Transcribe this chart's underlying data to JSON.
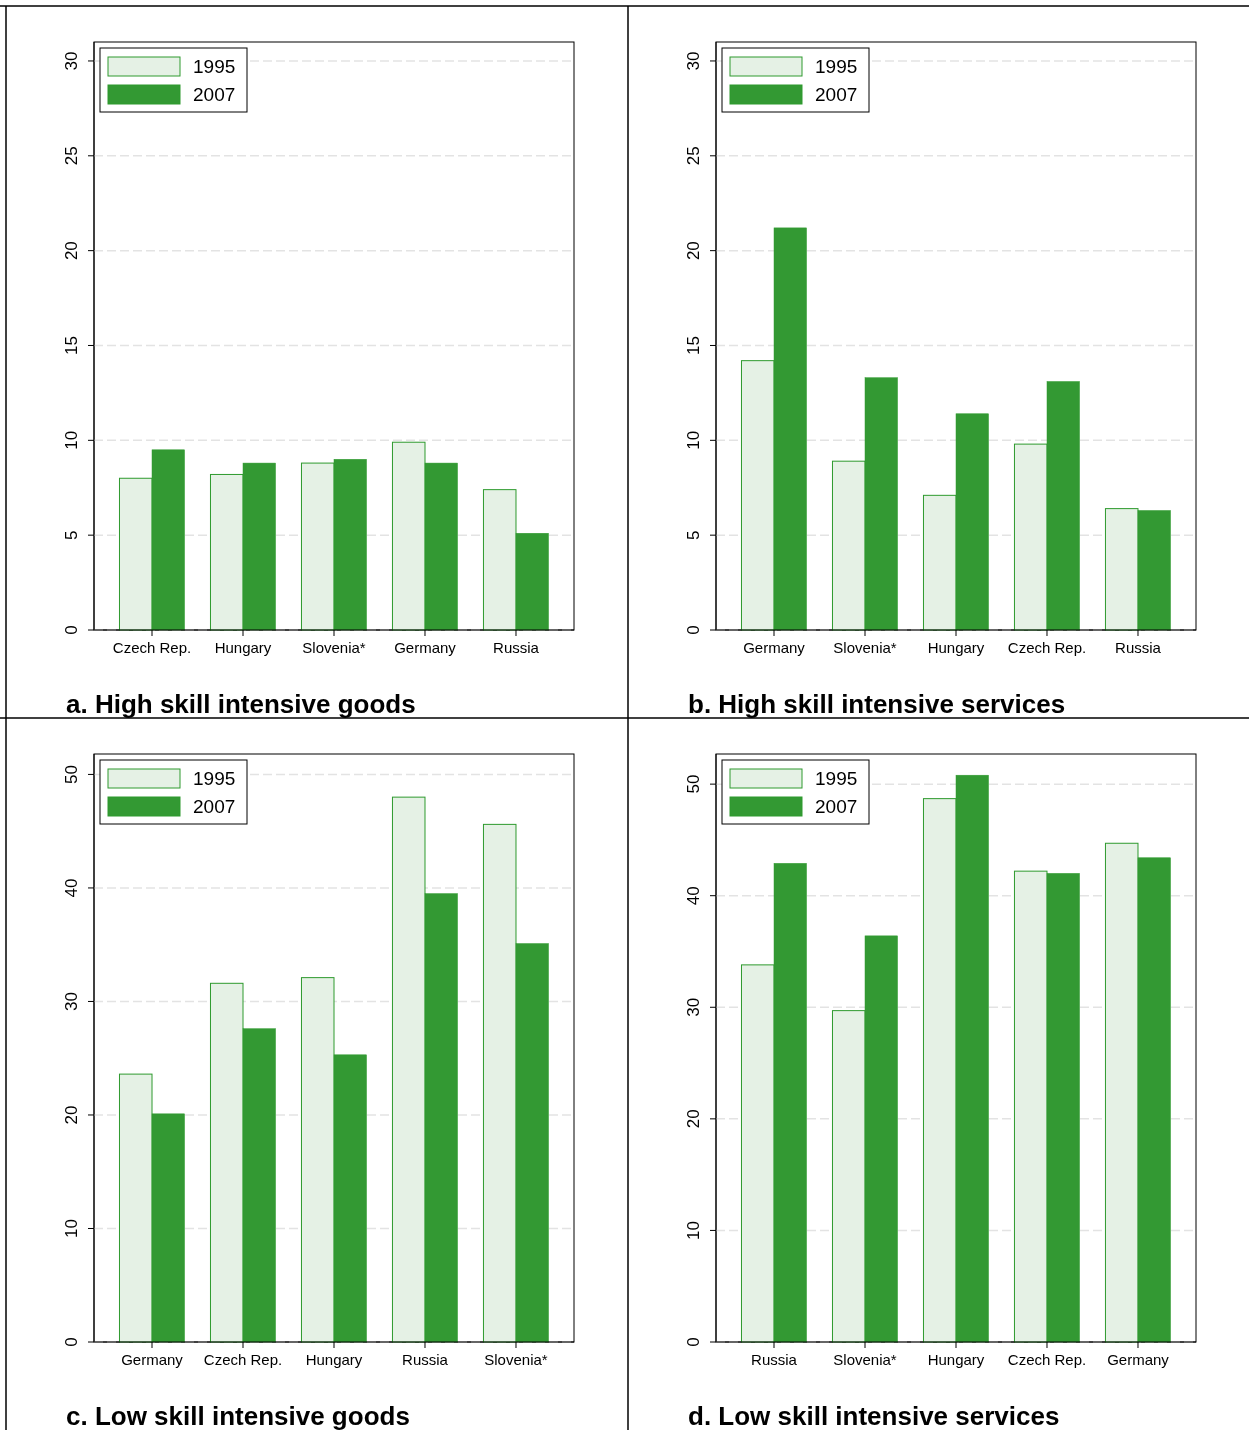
{
  "chart_data": [
    {
      "type": "bar",
      "title": "a. High skill intensive goods",
      "categories": [
        "Czech Rep.",
        "Hungary",
        "Slovenia*",
        "Germany",
        "Russia"
      ],
      "series": [
        {
          "name": "1995",
          "color": "#e5f1e5",
          "values": [
            8.0,
            8.2,
            8.8,
            9.9,
            7.4
          ]
        },
        {
          "name": "2007",
          "color": "#339933",
          "values": [
            9.5,
            8.8,
            9.0,
            8.8,
            5.1
          ]
        }
      ],
      "ylim": [
        0,
        31
      ],
      "yticks": [
        0,
        5,
        10,
        15,
        20,
        25,
        30
      ],
      "grid": "y",
      "legend": "top left"
    },
    {
      "type": "bar",
      "title": "b. High skill intensive services",
      "categories": [
        "Germany",
        "Slovenia*",
        "Hungary",
        "Czech Rep.",
        "Russia"
      ],
      "series": [
        {
          "name": "1995",
          "color": "#e5f1e5",
          "values": [
            14.2,
            8.9,
            7.1,
            9.8,
            6.4
          ]
        },
        {
          "name": "2007",
          "color": "#339933",
          "values": [
            21.2,
            13.3,
            11.4,
            13.1,
            6.3
          ]
        }
      ],
      "ylim": [
        0,
        31
      ],
      "yticks": [
        0,
        5,
        10,
        15,
        20,
        25,
        30
      ],
      "grid": "y",
      "legend": "top left"
    },
    {
      "type": "bar",
      "title": "c. Low skill intensive goods",
      "categories": [
        "Germany",
        "Czech Rep.",
        "Hungary",
        "Russia",
        "Slovenia*"
      ],
      "series": [
        {
          "name": "1995",
          "color": "#e5f1e5",
          "values": [
            23.6,
            31.6,
            32.1,
            48.0,
            45.6
          ]
        },
        {
          "name": "2007",
          "color": "#339933",
          "values": [
            20.1,
            27.6,
            25.3,
            39.5,
            35.1
          ]
        }
      ],
      "ylim": [
        0,
        51.8
      ],
      "yticks": [
        0,
        10,
        20,
        30,
        40,
        50
      ],
      "grid": "y",
      "legend": "top left"
    },
    {
      "type": "bar",
      "title": "d. Low skill intensive services",
      "categories": [
        "Russia",
        "Slovenia*",
        "Hungary",
        "Czech Rep.",
        "Germany"
      ],
      "series": [
        {
          "name": "1995",
          "color": "#e5f1e5",
          "values": [
            33.8,
            29.7,
            48.7,
            42.2,
            44.7
          ]
        },
        {
          "name": "2007",
          "color": "#339933",
          "values": [
            42.9,
            36.4,
            50.8,
            42.0,
            43.4
          ]
        }
      ],
      "ylim": [
        0,
        52.7
      ],
      "yticks": [
        0,
        10,
        20,
        30,
        40,
        50
      ],
      "grid": "y",
      "legend": "top left"
    }
  ]
}
